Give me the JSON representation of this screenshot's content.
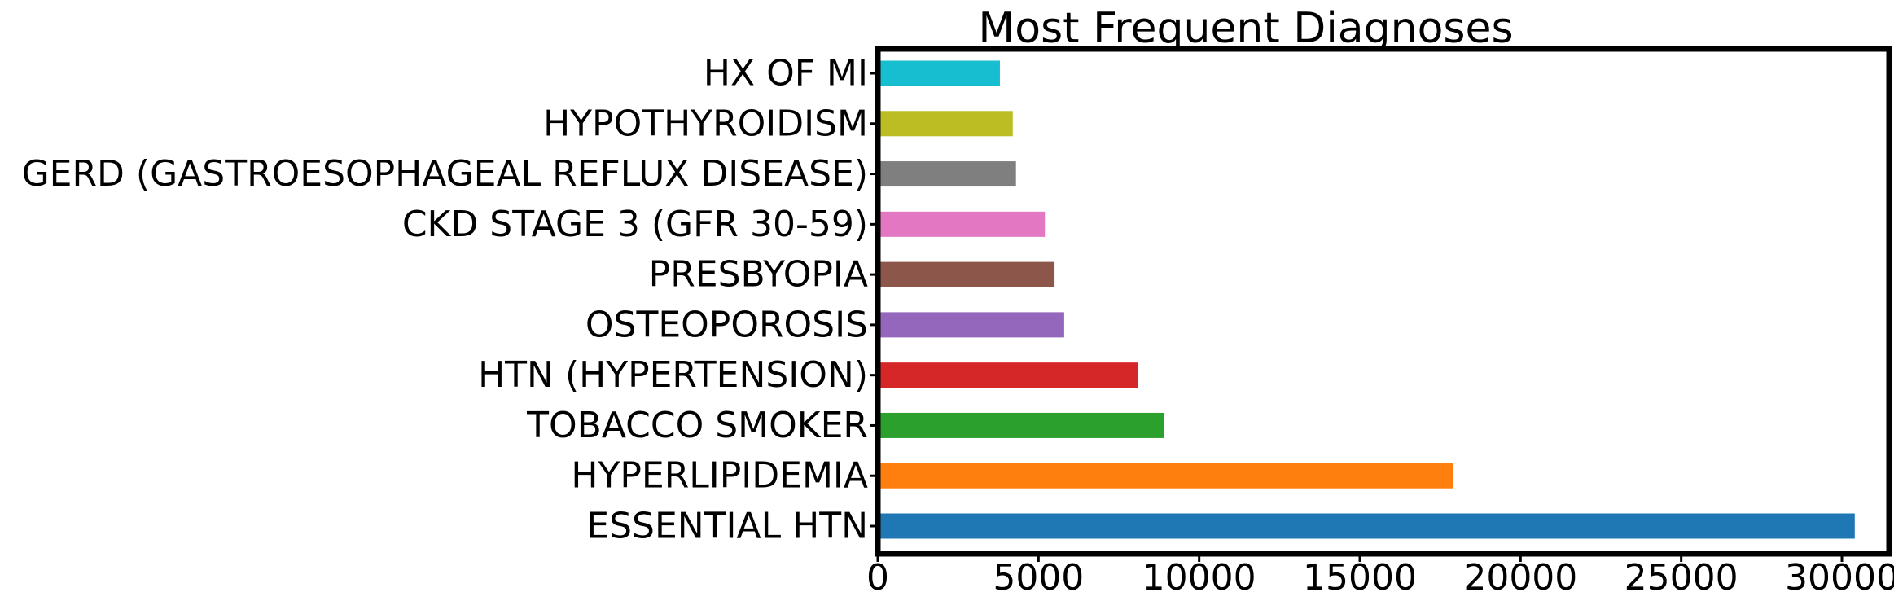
{
  "chart_data": {
    "type": "bar",
    "orientation": "horizontal",
    "title": "Most Frequent Diagnoses",
    "xlabel": "",
    "ylabel": "",
    "xlim": [
      0,
      32000
    ],
    "x_ticks": [
      0,
      5000,
      10000,
      15000,
      20000,
      25000,
      30000
    ],
    "grid": false,
    "legend": "none",
    "categories": [
      "ESSENTIAL HTN",
      "HYPERLIPIDEMIA",
      "TOBACCO SMOKER",
      "HTN (HYPERTENSION)",
      "OSTEOPOROSIS",
      "PRESBYOPIA",
      "CKD STAGE 3 (GFR 30-59)",
      "GERD (GASTROESOPHAGEAL REFLUX DISEASE)",
      "HYPOTHYROIDISM",
      "HX OF MI"
    ],
    "values": [
      30400,
      17900,
      8900,
      8100,
      5800,
      5500,
      5200,
      4300,
      4200,
      3800
    ],
    "colors": [
      "#1f77b4",
      "#ff7f0e",
      "#2ca02c",
      "#d62728",
      "#9467bd",
      "#8c564b",
      "#e377c2",
      "#7f7f7f",
      "#bcbd22",
      "#17becf"
    ]
  }
}
